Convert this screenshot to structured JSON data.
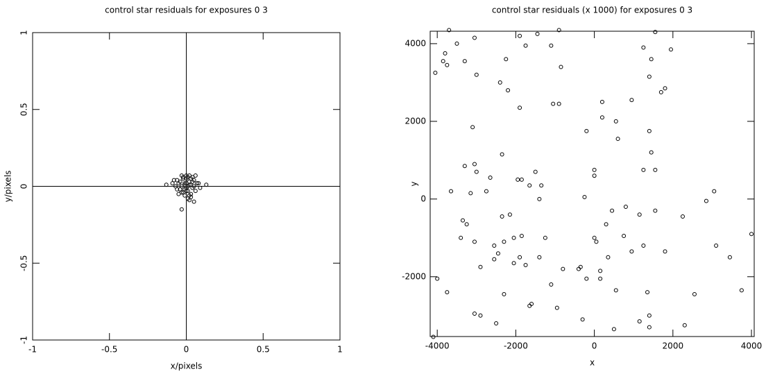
{
  "chart_data": [
    {
      "type": "scatter",
      "title": "control star residuals for exposures 0 3",
      "xlabel": "x/pixels",
      "ylabel": "y/pixels",
      "xlim": [
        -1,
        1
      ],
      "ylim": [
        -1,
        1
      ],
      "xticks": [
        -1,
        -0.5,
        0,
        0.5,
        1
      ],
      "yticks": [
        -1,
        -0.5,
        0,
        0.5,
        1
      ],
      "zero_lines": true,
      "color": "#000000",
      "x": [
        -0.03,
        0.02,
        -0.01,
        0.04,
        -0.05,
        0.01,
        0.0,
        -0.02,
        0.03,
        0.05,
        -0.04,
        0.02,
        -0.06,
        0.06,
        -0.01,
        0.01,
        0.03,
        -0.03,
        0.0,
        0.02,
        -0.02,
        0.04,
        -0.07,
        0.07,
        -0.05,
        0.05,
        0.0,
        -0.01,
        0.01,
        0.03,
        -0.04,
        0.02,
        -0.02,
        0.0,
        0.04,
        -0.08,
        0.09,
        -0.13,
        0.13,
        -0.03,
        0.05,
        0.01,
        -0.06,
        0.06,
        0.0,
        -0.03,
        0.03,
        0.02,
        -0.01,
        -0.09,
        0.08,
        0.01,
        -0.04
      ],
      "y": [
        0.0,
        0.01,
        -0.02,
        0.03,
        0.02,
        -0.03,
        0.05,
        0.06,
        -0.05,
        0.0,
        -0.02,
        0.07,
        0.04,
        -0.03,
        0.02,
        0.0,
        -0.07,
        -0.04,
        -0.01,
        0.03,
        0.05,
        -0.01,
        0.0,
        0.02,
        -0.05,
        0.04,
        0.07,
        -0.06,
        0.06,
        0.01,
        0.03,
        -0.09,
        -0.04,
        0.02,
        0.06,
        0.04,
        -0.01,
        0.01,
        0.01,
        -0.15,
        -0.1,
        -0.08,
        -0.02,
        0.07,
        -0.03,
        0.07,
        0.05,
        -0.06,
        0.01,
        0.02,
        0.02,
        0.0,
        -0.02
      ]
    },
    {
      "type": "scatter",
      "title": "control star residuals (x 1000) for exposures 0 3",
      "xlabel": "x",
      "ylabel": "y",
      "xlim": [
        -4180,
        4070
      ],
      "ylim": [
        -3540,
        4320
      ],
      "xticks": [
        -4000,
        -2000,
        0,
        2000,
        4000
      ],
      "yticks": [
        -2000,
        0,
        2000,
        4000
      ],
      "zero_lines": false,
      "color": "#000000",
      "x": [
        -4050,
        -3850,
        -3800,
        -3750,
        -3700,
        -3500,
        -3300,
        -3050,
        -3000,
        -2400,
        -2250,
        -2200,
        -1900,
        -1750,
        -1450,
        -1100,
        -900,
        -850,
        -1050,
        -900,
        -1900,
        -3100,
        200,
        950,
        1250,
        1450,
        1550,
        1950,
        1400,
        1700,
        1800,
        200,
        550,
        -200,
        600,
        1400,
        1450,
        -2350,
        -3300,
        -3050,
        -2650,
        -3000,
        -1950,
        -1850,
        -1500,
        -1650,
        -1350,
        -3650,
        -3150,
        -2750,
        0,
        0,
        1250,
        1550,
        -250,
        -1400,
        -3350,
        -3250,
        -2350,
        -2150,
        -3050,
        -3400,
        -2550,
        -2300,
        -2050,
        -1850,
        -1250,
        450,
        800,
        1550,
        2250,
        2850,
        3050,
        1150,
        300,
        0,
        50,
        750,
        1250,
        3100,
        3450,
        -2550,
        -2900,
        -2450,
        -1900,
        -2050,
        -1750,
        -1400,
        -800,
        -350,
        -400,
        350,
        150,
        950,
        1800,
        -200,
        150,
        -4000,
        -3750,
        -1100,
        550,
        1350,
        2550,
        3750,
        4000,
        -2300,
        -3050,
        -2900,
        -2500,
        -1650,
        -1600,
        -950,
        -300,
        500,
        1150,
        1400,
        1400,
        2300,
        -4100
      ],
      "y": [
        3250,
        3550,
        3750,
        3450,
        4350,
        4000,
        3550,
        4150,
        3200,
        3000,
        3600,
        2800,
        4200,
        3950,
        4250,
        3950,
        4350,
        3400,
        2450,
        2450,
        2350,
        1850,
        2500,
        2550,
        3900,
        3600,
        4300,
        3850,
        3150,
        2750,
        2850,
        2100,
        2000,
        1750,
        1550,
        1750,
        1200,
        1150,
        850,
        900,
        550,
        700,
        500,
        500,
        700,
        350,
        350,
        200,
        150,
        200,
        750,
        600,
        750,
        750,
        50,
        0,
        -550,
        -650,
        -450,
        -400,
        -1100,
        -1000,
        -1200,
        -1100,
        -1000,
        -950,
        -1000,
        -300,
        -200,
        -300,
        -450,
        -50,
        200,
        -400,
        -650,
        -1000,
        -1100,
        -950,
        -1200,
        -1200,
        -1500,
        -1550,
        -1750,
        -1400,
        -1500,
        -1650,
        -1700,
        -1500,
        -1800,
        -1750,
        -1800,
        -1500,
        -1850,
        -1350,
        -1350,
        -2050,
        -2050,
        -2050,
        -2400,
        -2200,
        -2350,
        -2400,
        -2450,
        -2350,
        -900,
        -2450,
        -2950,
        -3000,
        -3200,
        -2750,
        -2700,
        -2800,
        -3100,
        -3350,
        -3150,
        -3000,
        -3300,
        -3250,
        -3550
      ]
    }
  ]
}
